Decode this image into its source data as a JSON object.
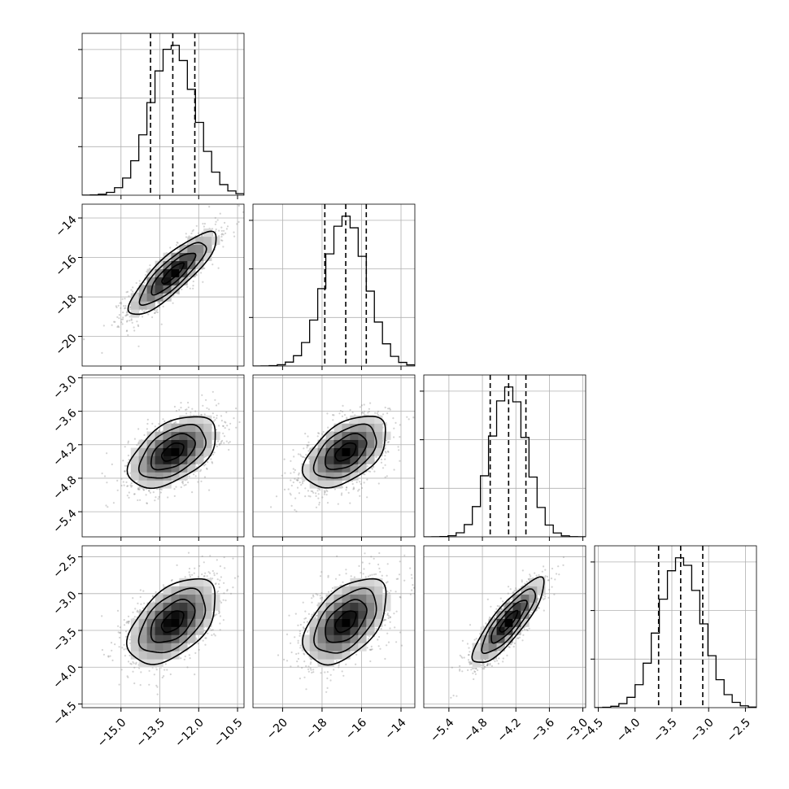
{
  "chart_data": {
    "type": "corner",
    "grid": true,
    "scatter_color": "#808080",
    "line_color": "#000000",
    "parameters": [
      {
        "range": [
          -16.5,
          -10.25
        ],
        "ticks": [
          -15.0,
          -13.5,
          -12.0,
          -10.5
        ],
        "tick_labels": [
          "−15.0",
          "−13.5",
          "−12.0",
          "−10.5"
        ],
        "mean": -13.0,
        "sd": 0.85,
        "quantiles": [
          -13.86,
          -13.0,
          -12.15
        ]
      },
      {
        "range": [
          -21.5,
          -13.3
        ],
        "ticks": [
          -20,
          -18,
          -16,
          -14
        ],
        "tick_labels": [
          "−20",
          "−18",
          "−16",
          "−14"
        ],
        "mean": -16.8,
        "sd": 1.05,
        "quantiles": [
          -17.86,
          -16.8,
          -15.76
        ]
      },
      {
        "range": [
          -5.85,
          -2.95
        ],
        "ticks": [
          -5.4,
          -4.8,
          -4.2,
          -3.6,
          -3.0
        ],
        "tick_labels": [
          "−5.4",
          "−4.8",
          "−4.2",
          "−3.6",
          "−3.0"
        ],
        "mean": -4.33,
        "sd": 0.32,
        "quantiles": [
          -4.66,
          -4.33,
          -4.02
        ]
      },
      {
        "range": [
          -4.55,
          -2.35
        ],
        "ticks": [
          -4.5,
          -4.0,
          -3.5,
          -3.0,
          -2.5
        ],
        "tick_labels": [
          "−4.5",
          "−4.0",
          "−3.5",
          "−3.0",
          "−2.5"
        ],
        "mean": -3.38,
        "sd": 0.29,
        "quantiles": [
          -3.68,
          -3.38,
          -3.08
        ]
      }
    ],
    "correlations": [
      [
        1.0,
        0.85,
        0.5,
        0.5
      ],
      [
        0.85,
        1.0,
        0.5,
        0.5
      ],
      [
        0.5,
        0.5,
        1.0,
        0.85
      ],
      [
        0.5,
        0.5,
        0.85,
        1.0
      ]
    ],
    "hist_bins": 20,
    "contour_levels_sigma": [
      0.5,
      1.0,
      1.5,
      2.0
    ],
    "diagonal_ylim_fraction": 1.08
  }
}
